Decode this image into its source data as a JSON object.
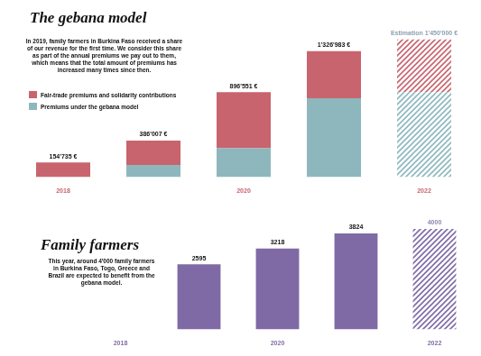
{
  "chart_data": [
    {
      "type": "bar",
      "title": "The gebana model",
      "subtitle": "In 2019, family farmers in Burkina Faso received a share of our revenue for the first time. We consider this share as part of the annual premiums we pay out to them, which means that the total amount of premiums has increased many times since then.",
      "categories": [
        "2018",
        null,
        "2020",
        null,
        "2022"
      ],
      "series": [
        {
          "name": "Fair-trade premiums and solidarity contributions",
          "color": "#c8646e",
          "values": [
            154735,
            258007,
            592551,
            494983,
            554000
          ]
        },
        {
          "name": "Premiums under the gebana model",
          "color": "#8db7bd",
          "values": [
            0,
            128000,
            304000,
            832000,
            896000
          ]
        }
      ],
      "totals": [
        154735,
        386007,
        896551,
        1326983,
        1450000
      ],
      "total_labels": [
        "154'735 €",
        "386'007 €",
        "896'551 €",
        "1'326'983 €",
        "Estimation 1'450'000 €"
      ],
      "stacked": true,
      "legend": "top-left",
      "tick_labels": "x",
      "grid": false
    },
    {
      "type": "bar",
      "title": "Family farmers",
      "subtitle": "This year, around 4'000 family farmers in Burkina Faso, Togo, Greece and Brazil are expected to benefit from the gebana model.",
      "categories": [
        "2018",
        null,
        "2020",
        null,
        "2022"
      ],
      "values": [
        0,
        2595,
        3218,
        3824,
        4000
      ],
      "value_labels": [
        null,
        "2595",
        "3218",
        "3824",
        "4000"
      ],
      "color": "#7f6aa6",
      "data_labels": true,
      "tick_labels": "x",
      "grid": false
    }
  ]
}
